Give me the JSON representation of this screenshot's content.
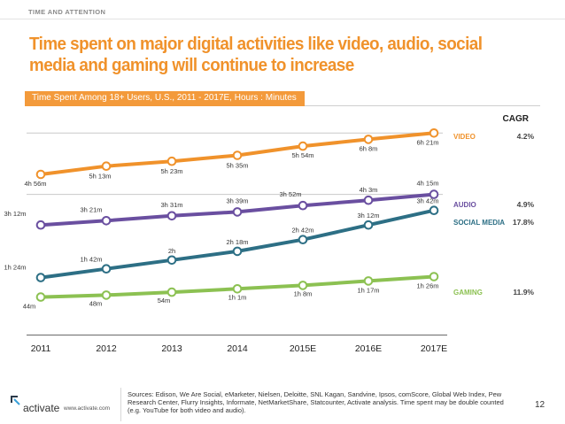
{
  "header": {
    "section": "TIME AND ATTENTION",
    "title": "Time spent on major digital activities like video, audio, social media and gaming will continue to increase",
    "subtitle": "Time Spent Among 18+ Users, U.S., 2011 - 2017E, Hours : Minutes"
  },
  "chart_data": {
    "type": "line",
    "categories": [
      "2011",
      "2012",
      "2013",
      "2014",
      "2015E",
      "2016E",
      "2017E"
    ],
    "ylabel": "",
    "cagr_header": "CAGR",
    "series": [
      {
        "name": "VIDEO",
        "cagr": "4.2%",
        "color": "#f0922b",
        "values_minutes": [
          296,
          313,
          323,
          335,
          354,
          368,
          381
        ],
        "labels": [
          "4h 56m",
          "5h 13m",
          "5h 23m",
          "5h 35m",
          "5h 54m",
          "6h 8m",
          "6h 21m"
        ]
      },
      {
        "name": "AUDIO",
        "cagr": "4.9%",
        "color": "#6a4fa0",
        "values_minutes": [
          192,
          201,
          211,
          219,
          232,
          243,
          255
        ],
        "labels": [
          "3h 12m",
          "3h 21m",
          "3h 31m",
          "3h 39m",
          "3h 52m",
          "4h 3m",
          "4h 15m"
        ]
      },
      {
        "name": "SOCIAL MEDIA",
        "cagr": "17.8%",
        "color": "#2d6f85",
        "values_minutes": [
          84,
          102,
          120,
          138,
          162,
          192,
          222
        ],
        "labels": [
          "1h 24m",
          "1h 42m",
          "2h",
          "2h 18m",
          "2h 42m",
          "3h 12m",
          "3h 42m"
        ]
      },
      {
        "name": "GAMING",
        "cagr": "11.9%",
        "color": "#8cc152",
        "values_minutes": [
          44,
          48,
          54,
          61,
          68,
          77,
          86
        ],
        "labels": [
          "44m",
          "48m",
          "54m",
          "1h 1m",
          "1h 8m",
          "1h 17m",
          "1h 26m"
        ]
      }
    ]
  },
  "footer": {
    "brand": "activate",
    "url": "www.activate.com",
    "sources": "Sources: Edison, We Are Social, eMarketer, Nielsen, Deloitte, SNL Kagan, Sandvine, Ipsos, comScore, Global Web Index, Pew Research Center, Flurry Insights, Informate, NetMarketShare, Statcounter, Activate analysis. Time spent may be double counted (e.g. YouTube for both video and audio).",
    "page": "12"
  }
}
